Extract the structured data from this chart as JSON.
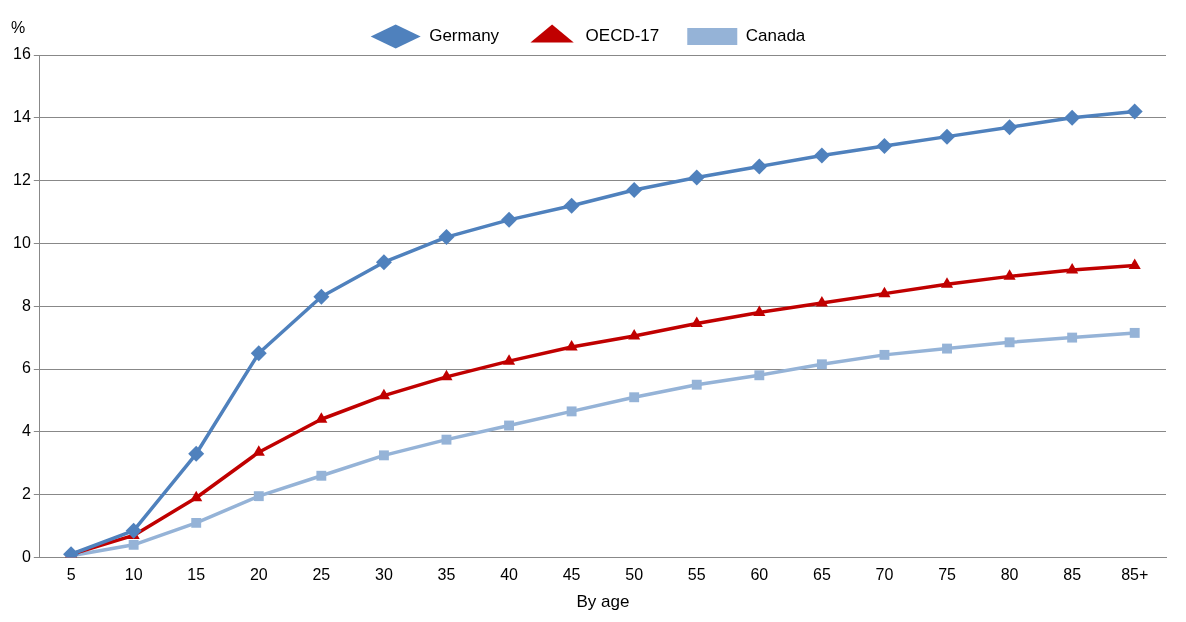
{
  "chart_data": {
    "type": "line",
    "xlabel": "By age",
    "ylabel": "%",
    "categories": [
      "5",
      "10",
      "15",
      "20",
      "25",
      "30",
      "35",
      "40",
      "45",
      "50",
      "55",
      "60",
      "65",
      "70",
      "75",
      "80",
      "85",
      "85+"
    ],
    "series": [
      {
        "name": "Germany",
        "color": "#4f81bd",
        "marker": "diamond",
        "values": [
          0.1,
          0.85,
          3.3,
          6.5,
          8.3,
          9.4,
          10.2,
          10.75,
          11.2,
          11.7,
          12.1,
          12.45,
          12.8,
          13.1,
          13.4,
          13.7,
          14.0,
          14.2
        ]
      },
      {
        "name": "OECD-17",
        "color": "#c00000",
        "marker": "triangle",
        "values": [
          0.1,
          0.7,
          1.9,
          3.35,
          4.4,
          5.15,
          5.75,
          6.25,
          6.7,
          7.05,
          7.45,
          7.8,
          8.1,
          8.4,
          8.7,
          8.95,
          9.15,
          9.3
        ]
      },
      {
        "name": "Canada",
        "color": "#95b3d7",
        "marker": "square",
        "values": [
          0.05,
          0.4,
          1.1,
          1.95,
          2.6,
          3.25,
          3.75,
          4.2,
          4.65,
          5.1,
          5.5,
          5.8,
          6.15,
          6.45,
          6.65,
          6.85,
          7.0,
          7.15
        ]
      }
    ],
    "ylim": [
      0,
      16
    ],
    "yticks": [
      0,
      2,
      4,
      6,
      8,
      10,
      12,
      14,
      16
    ],
    "grid": "y",
    "legend": "top",
    "line_style": "solid"
  }
}
